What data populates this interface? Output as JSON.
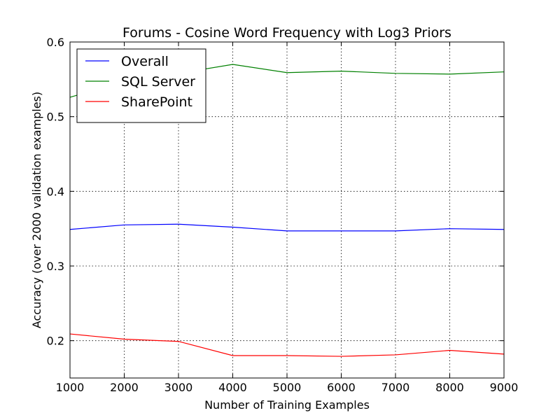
{
  "chart_data": {
    "type": "line",
    "title": "Forums - Cosine Word Frequency with Log3 Priors",
    "xlabel": "Number of Training Examples",
    "ylabel": "Accuracy (over 2000 validation examples)",
    "xlim": [
      1000,
      9000
    ],
    "ylim": [
      0.15,
      0.6
    ],
    "xticks": [
      1000,
      2000,
      3000,
      4000,
      5000,
      6000,
      7000,
      8000,
      9000
    ],
    "yticks": [
      0.2,
      0.3,
      0.4,
      0.5,
      0.6
    ],
    "grid": true,
    "legend_position": "top-left",
    "x": [
      1000,
      2000,
      3000,
      4000,
      5000,
      6000,
      7000,
      8000,
      9000
    ],
    "series": [
      {
        "name": "Overall",
        "color": "#0000ff",
        "values": [
          0.349,
          0.355,
          0.356,
          0.352,
          0.347,
          0.347,
          0.347,
          0.35,
          0.349
        ]
      },
      {
        "name": "SQL Server",
        "color": "#008000",
        "values": [
          0.526,
          0.547,
          0.558,
          0.57,
          0.559,
          0.561,
          0.558,
          0.557,
          0.56
        ]
      },
      {
        "name": "SharePoint",
        "color": "#ff0000",
        "values": [
          0.209,
          0.202,
          0.199,
          0.18,
          0.18,
          0.179,
          0.181,
          0.187,
          0.182
        ]
      }
    ]
  }
}
